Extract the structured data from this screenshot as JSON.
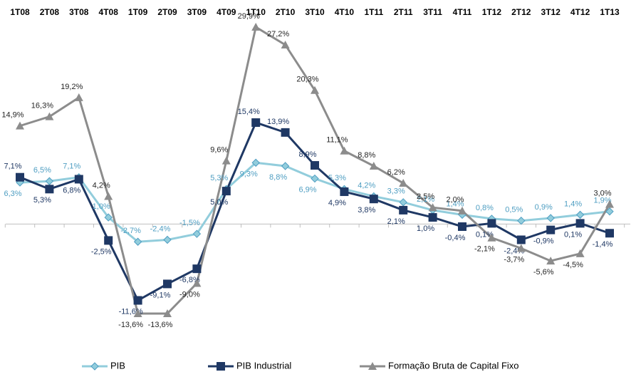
{
  "chart_data": {
    "type": "line",
    "categories": [
      "1T08",
      "2T08",
      "3T08",
      "4T08",
      "1T09",
      "2T09",
      "3T09",
      "4T09",
      "1T10",
      "2T10",
      "3T10",
      "4T10",
      "1T11",
      "2T11",
      "3T11",
      "4T11",
      "1T12",
      "2T12",
      "3T12",
      "4T12",
      "1T13"
    ],
    "series": [
      {
        "name": "PIB",
        "color": "#92cddc",
        "marker": "diamond",
        "values": [
          6.3,
          6.5,
          7.1,
          1.0,
          -2.7,
          -2.4,
          -1.5,
          5.3,
          9.3,
          8.8,
          6.9,
          5.3,
          4.2,
          3.3,
          2.1,
          1.4,
          0.8,
          0.5,
          0.9,
          1.4,
          1.9
        ],
        "value_labels": [
          "6,3%",
          "6,5%",
          "7,1%",
          "1,0%",
          "-2,7%",
          "-2,4%",
          "-1,5%",
          "5,3%",
          "9,3%",
          "8,8%",
          "6,9%",
          "5,3%",
          "4,2%",
          "3,3%",
          "2,1%",
          "1,4%",
          "0,8%",
          "0,5%",
          "0,9%",
          "1,4%",
          "1,9%"
        ]
      },
      {
        "name": "PIB Industrial",
        "color": "#1f3864",
        "marker": "square",
        "values": [
          7.1,
          5.3,
          6.8,
          -2.5,
          -11.6,
          -9.1,
          -6.8,
          5.0,
          15.4,
          13.9,
          8.9,
          4.9,
          3.8,
          2.1,
          1.0,
          -0.4,
          0.1,
          -2.4,
          -0.9,
          0.1,
          -1.4
        ],
        "value_labels": [
          "7,1%",
          "5,3%",
          "6,8%",
          "-2,5%",
          "-11,6%",
          "-9,1%",
          "-6,8%",
          "5,0%",
          "15,4%",
          "13,9%",
          "8,9%",
          "4,9%",
          "3,8%",
          "2,1%",
          "1,0%",
          "-0,4%",
          "0,1%",
          "-2,4%",
          "-0,9%",
          "0,1%",
          "-1,4%"
        ]
      },
      {
        "name": "Formação Bruta de Capital Fixo",
        "color": "#8c8c8c",
        "marker": "triangle",
        "values": [
          14.9,
          16.3,
          19.2,
          4.2,
          -13.6,
          -13.6,
          -9.0,
          9.6,
          29.9,
          27.2,
          20.3,
          11.1,
          8.8,
          6.2,
          2.5,
          2.0,
          -2.1,
          -3.7,
          -5.6,
          -4.5,
          3.0
        ],
        "value_labels": [
          "14,9%",
          "16,3%",
          "19,2%",
          "4,2%",
          "-13,6%",
          "-13,6%",
          "-9,0%",
          "9,6%",
          "29,9%",
          "27,2%",
          "20,3%",
          "11,1%",
          "8,8%",
          "6,2%",
          "2,5%",
          "2,0%",
          "-2,1%",
          "-3,7%",
          "-5,6%",
          "-4,5%",
          "3,0%"
        ]
      }
    ],
    "legend": "bottom"
  }
}
